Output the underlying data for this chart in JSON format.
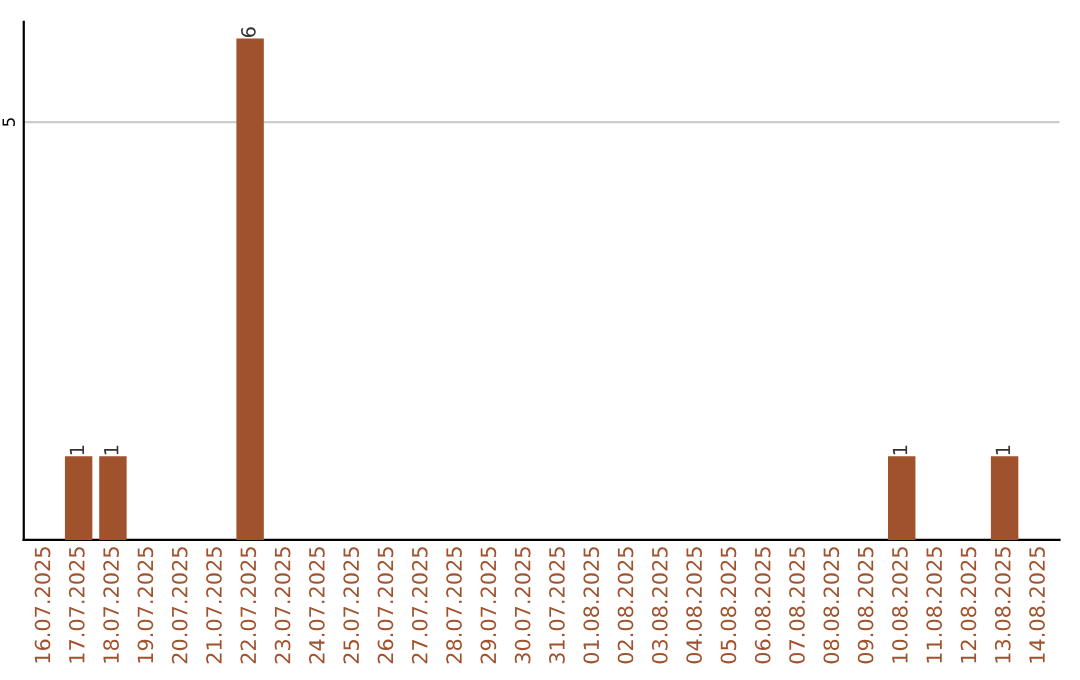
{
  "chart_data": {
    "type": "bar",
    "categories": [
      "16.07.2025",
      "17.07.2025",
      "18.07.2025",
      "19.07.2025",
      "20.07.2025",
      "21.07.2025",
      "22.07.2025",
      "23.07.2025",
      "24.07.2025",
      "25.07.2025",
      "26.07.2025",
      "27.07.2025",
      "28.07.2025",
      "29.07.2025",
      "30.07.2025",
      "31.07.2025",
      "01.08.2025",
      "02.08.2025",
      "03.08.2025",
      "04.08.2025",
      "05.08.2025",
      "06.08.2025",
      "07.08.2025",
      "08.08.2025",
      "09.08.2025",
      "10.08.2025",
      "11.08.2025",
      "12.08.2025",
      "13.08.2025",
      "14.08.2025"
    ],
    "values": [
      0,
      1,
      1,
      0,
      0,
      0,
      6,
      0,
      0,
      0,
      0,
      0,
      0,
      0,
      0,
      0,
      0,
      0,
      0,
      0,
      0,
      0,
      0,
      0,
      0,
      1,
      0,
      0,
      1,
      0
    ],
    "color": "#a0522d",
    "value_labels": [
      null,
      "1",
      "1",
      null,
      null,
      null,
      "6",
      null,
      null,
      null,
      null,
      null,
      null,
      null,
      null,
      null,
      null,
      null,
      null,
      null,
      null,
      null,
      null,
      null,
      null,
      "1",
      null,
      null,
      "1",
      null
    ],
    "ylim": [
      0,
      6.2
    ],
    "yticks": [
      5
    ],
    "grid": "y"
  }
}
